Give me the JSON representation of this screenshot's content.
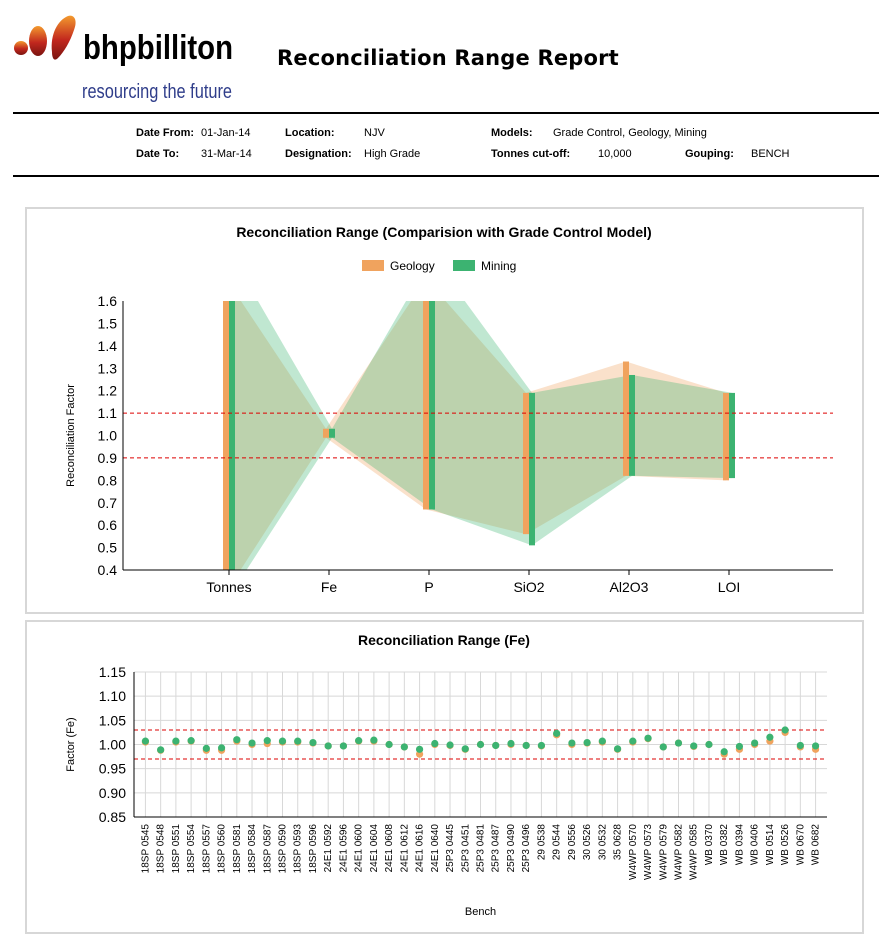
{
  "header": {
    "brand_name": "bhpbilliton",
    "brand_tagline": "resourcing the future",
    "title": "Reconciliation Range Report"
  },
  "meta": {
    "date_from_label": "Date From:",
    "date_from": "01-Jan-14",
    "date_to_label": "Date To:",
    "date_to": "31-Mar-14",
    "location_label": "Location:",
    "location": "NJV",
    "designation_label": "Designation:",
    "designation": "High Grade",
    "models_label": "Models:",
    "models": "Grade Control, Geology, Mining",
    "tonnes_cutoff_label": "Tonnes cut-off:",
    "tonnes_cutoff": "10,000",
    "grouping_label": "Gouping:",
    "grouping": "BENCH"
  },
  "colors": {
    "geology": "#f0a35e",
    "mining": "#3cb371",
    "reference_line": "#dd0000",
    "grid": "#d8d8d8"
  },
  "chart_data": [
    {
      "type": "range",
      "title": "Reconciliation Range (Comparision with Grade Control Model)",
      "xlabel": "",
      "ylabel": "Reconciliation Factor",
      "ylim": [
        0.4,
        1.6
      ],
      "yticks": [
        "1.6",
        "1.5",
        "1.4",
        "1.3",
        "1.2",
        "1.1",
        "1.0",
        "0.9",
        "0.8",
        "0.7",
        "0.6",
        "0.5",
        "0.4"
      ],
      "categories": [
        "Tonnes",
        "Fe",
        "P",
        "SiO2",
        "Al2O3",
        "LOI"
      ],
      "reference_lines": [
        0.9,
        1.1
      ],
      "legend_position": "top-center",
      "grid": false,
      "series": [
        {
          "name": "Geology",
          "color": "#f0a35e",
          "min": [
            0.3,
            0.99,
            0.67,
            0.56,
            0.82,
            0.8
          ],
          "max": [
            1.7,
            1.03,
            1.7,
            1.19,
            1.33,
            1.19
          ]
        },
        {
          "name": "Mining",
          "color": "#3cb371",
          "min": [
            0.3,
            0.99,
            0.67,
            0.51,
            0.82,
            0.81
          ],
          "max": [
            1.8,
            1.03,
            1.8,
            1.19,
            1.27,
            1.19
          ]
        }
      ]
    },
    {
      "type": "scatter",
      "title": "Reconciliation Range (Fe)",
      "xlabel": "Bench",
      "ylabel": "Factor (Fe)",
      "ylim": [
        0.85,
        1.15
      ],
      "yticks": [
        "1.15",
        "1.10",
        "1.05",
        "1.00",
        "0.95",
        "0.90",
        "0.85"
      ],
      "reference_lines": [
        0.97,
        1.03
      ],
      "grid": true,
      "categories": [
        "18SP 0545",
        "18SP 0548",
        "18SP 0551",
        "18SP 0554",
        "18SP 0557",
        "18SP 0560",
        "18SP 0581",
        "18SP 0584",
        "18SP 0587",
        "18SP 0590",
        "18SP 0593",
        "18SP 0596",
        "24E1 0592",
        "24E1 0596",
        "24E1 0600",
        "24E1 0604",
        "24E1 0608",
        "24E1 0612",
        "24E1 0616",
        "24E1 0640",
        "25P3 0445",
        "25P3 0451",
        "25P3 0481",
        "25P3 0487",
        "25P3 0490",
        "25P3 0496",
        "29 0538",
        "29 0544",
        "29 0556",
        "30 0526",
        "30 0532",
        "35 0628",
        "W4WP 0570",
        "W4WP 0573",
        "W4WP 0579",
        "W4WP 0582",
        "W4WP 0585",
        "WB 0370",
        "WB 0382",
        "WB 0394",
        "WB 0406",
        "WB 0514",
        "WB 0526",
        "WB 0670",
        "WB 0682"
      ],
      "series": [
        {
          "name": "Geology",
          "color": "#f0a35e",
          "values": [
            1.005,
            0.988,
            1.005,
            1.007,
            0.988,
            0.988,
            1.007,
            1.0,
            1.002,
            1.005,
            1.005,
            1.003,
            0.997,
            0.997,
            1.007,
            1.007,
            1.0,
            0.995,
            0.98,
            1.0,
            0.998,
            0.99,
            1.0,
            0.998,
            1.0,
            0.998,
            0.997,
            1.02,
            1.0,
            1.003,
            1.005,
            0.99,
            1.005,
            1.012,
            0.995,
            1.003,
            0.996,
            1.0,
            0.98,
            0.99,
            1.0,
            1.007,
            1.025,
            0.995,
            0.99
          ]
        },
        {
          "name": "Mining",
          "color": "#3cb371",
          "values": [
            1.007,
            0.989,
            1.007,
            1.008,
            0.992,
            0.993,
            1.01,
            1.003,
            1.008,
            1.007,
            1.007,
            1.004,
            0.997,
            0.997,
            1.008,
            1.009,
            1.0,
            0.995,
            0.99,
            1.002,
            0.999,
            0.991,
            1.0,
            0.998,
            1.002,
            0.998,
            0.998,
            1.023,
            1.003,
            1.004,
            1.007,
            0.991,
            1.007,
            1.013,
            0.995,
            1.003,
            0.997,
            1.0,
            0.985,
            0.996,
            1.003,
            1.015,
            1.03,
            0.998,
            0.997
          ]
        }
      ]
    }
  ]
}
